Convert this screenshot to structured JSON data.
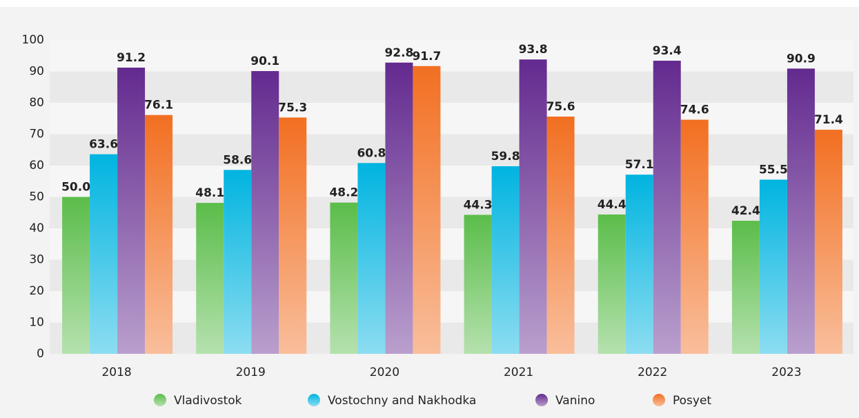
{
  "chart_data": {
    "type": "bar",
    "categories": [
      "2018",
      "2019",
      "2020",
      "2021",
      "2022",
      "2023"
    ],
    "series": [
      {
        "name": "Vladivostok",
        "color": "#5bbd4a",
        "values": [
          50.0,
          48.1,
          48.2,
          44.3,
          44.4,
          42.4
        ],
        "value_labels": [
          "50.0",
          "48.1",
          "48.2",
          "44.3",
          "44.4",
          "42.4"
        ]
      },
      {
        "name": "Vostochny and Nakhodka",
        "color": "#00b4e0",
        "values": [
          63.6,
          58.6,
          60.8,
          59.8,
          57.1,
          55.5
        ],
        "value_labels": [
          "63.6",
          "58.6",
          "60.8",
          "59.8",
          "57.1",
          "55.5"
        ]
      },
      {
        "name": "Vanino",
        "color": "#632a8f",
        "values": [
          91.2,
          90.1,
          92.8,
          93.8,
          93.4,
          90.9
        ],
        "value_labels": [
          "91.2",
          "90.1",
          "92.8",
          "93.8",
          "93.4",
          "90.9"
        ]
      },
      {
        "name": "Posyet",
        "color": "#f26f21",
        "values": [
          76.1,
          75.3,
          91.7,
          75.6,
          74.6,
          71.4
        ],
        "value_labels": [
          "76.1",
          "75.3",
          "91.7",
          "75.6",
          "74.6",
          "71.4"
        ]
      }
    ],
    "ylim": [
      0,
      100
    ],
    "yticks": [
      0,
      10,
      20,
      30,
      40,
      50,
      60,
      70,
      80,
      90,
      100
    ],
    "grid": true
  }
}
